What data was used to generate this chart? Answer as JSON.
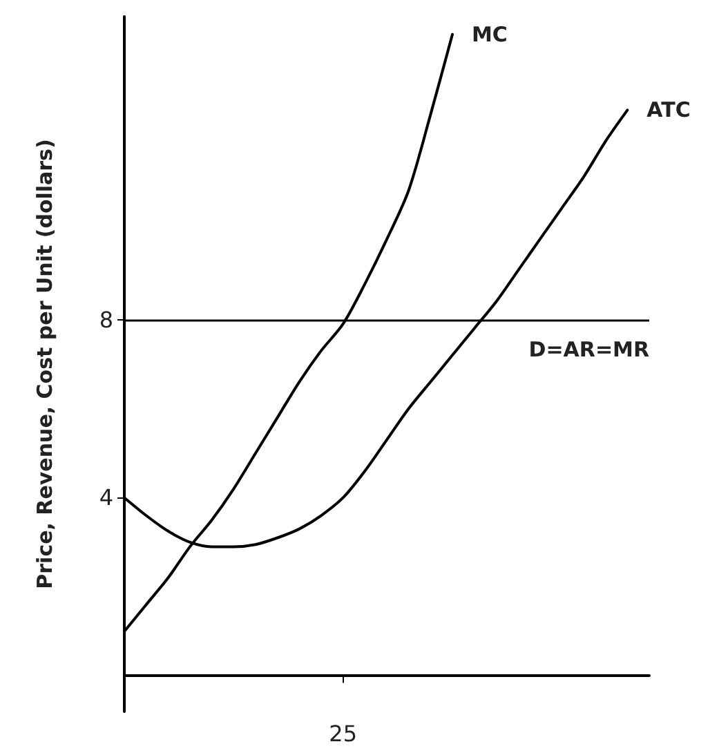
{
  "chart_data": {
    "type": "line",
    "ylabel": "Price, Revenue, Cost per Unit (dollars)",
    "categories": [
      null,
      null,
      null,
      null,
      null,
      null,
      null,
      null,
      null,
      null,
      "25",
      null,
      null,
      null,
      null,
      null,
      null,
      null,
      null,
      null,
      null,
      null,
      null,
      null,
      null
    ],
    "ylim": [
      -0.8,
      14.8
    ],
    "yticks": [
      4,
      8
    ],
    "series": [
      {
        "name": "MC",
        "color": "#000000",
        "values": [
          1.0,
          1.6,
          2.2,
          2.9,
          3.5,
          4.2,
          5.0,
          5.8,
          6.6,
          7.3,
          7.9,
          8.8,
          9.8,
          10.9,
          12.6,
          14.4,
          null,
          null,
          null,
          null,
          null,
          null,
          null,
          null,
          null
        ]
      },
      {
        "name": "ATC",
        "color": "#000000",
        "values": [
          4.0,
          3.6,
          3.25,
          3.0,
          2.9,
          2.9,
          2.95,
          3.1,
          3.3,
          3.6,
          4.0,
          4.6,
          5.3,
          6.0,
          6.6,
          7.2,
          7.8,
          8.4,
          9.1,
          9.8,
          10.5,
          11.2,
          12.0,
          12.7,
          null
        ]
      }
    ],
    "ref_lines": [
      {
        "axis": "y",
        "value": 8,
        "label": "D=AR=MR",
        "color": "#000000"
      }
    ],
    "marker": "none",
    "line_style": "solid",
    "grid": false,
    "legend": false
  }
}
